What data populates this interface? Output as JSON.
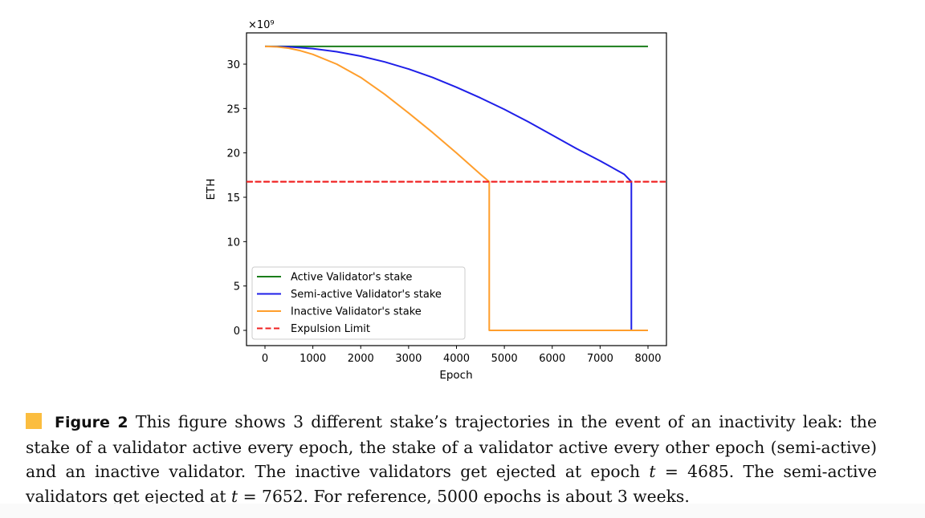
{
  "chart_data": {
    "type": "line",
    "title": "",
    "xlabel": "Epoch",
    "ylabel": "ETH",
    "y_multiplier": "×10⁹",
    "xlim": [
      -400,
      8400
    ],
    "ylim": [
      -1.5,
      33.5
    ],
    "xticks": [
      0,
      1000,
      2000,
      3000,
      4000,
      5000,
      6000,
      7000,
      8000
    ],
    "yticks": [
      0,
      5,
      10,
      15,
      20,
      25,
      30
    ],
    "grid": false,
    "legend_position": "lower-left",
    "series": [
      {
        "name": "Active Validator's stake",
        "color": "#1a7d1a",
        "style": "solid",
        "x": [
          0,
          8000
        ],
        "y": [
          32,
          32
        ]
      },
      {
        "name": "Semi-active Validator's stake",
        "color": "#1f1fe8",
        "style": "solid",
        "x": [
          0,
          500,
          1000,
          1500,
          2000,
          2500,
          3000,
          3500,
          4000,
          4500,
          5000,
          5500,
          6000,
          6500,
          7000,
          7500,
          7652,
          7652,
          8000
        ],
        "y": [
          32,
          31.95,
          31.75,
          31.4,
          30.9,
          30.25,
          29.45,
          28.5,
          27.4,
          26.2,
          24.9,
          23.5,
          22.0,
          20.5,
          19.1,
          17.6,
          16.75,
          0,
          0
        ]
      },
      {
        "name": "Inactive Validator's stake",
        "color": "#ff9e2c",
        "style": "solid",
        "x": [
          0,
          250,
          500,
          750,
          1000,
          1500,
          2000,
          2500,
          3000,
          3500,
          4000,
          4500,
          4685,
          4685,
          8000
        ],
        "y": [
          32,
          31.95,
          31.8,
          31.5,
          31.1,
          30.0,
          28.5,
          26.6,
          24.5,
          22.3,
          20.0,
          17.6,
          16.75,
          0,
          0
        ]
      },
      {
        "name": "Expulsion Limit",
        "color": "#f02020",
        "style": "dashed",
        "x": [
          -400,
          8400
        ],
        "y": [
          16.75,
          16.75
        ]
      }
    ]
  },
  "caption": {
    "label": "Figure 2",
    "text_1": " This figure shows 3 different stake’s trajectories in the event of an inactivity leak: the stake of a validator active every epoch, the stake of a validator active every other epoch (semi-active) and an inactive validator. The inactive validators get ejected at epoch ",
    "math_1": "t",
    "text_2": " = 4685. The semi-active validators get ejected at ",
    "math_2": "t",
    "text_3": " = 7652. For reference, 5000 epochs is about 3 weeks.",
    "marker_color": "#fbbd3f"
  }
}
